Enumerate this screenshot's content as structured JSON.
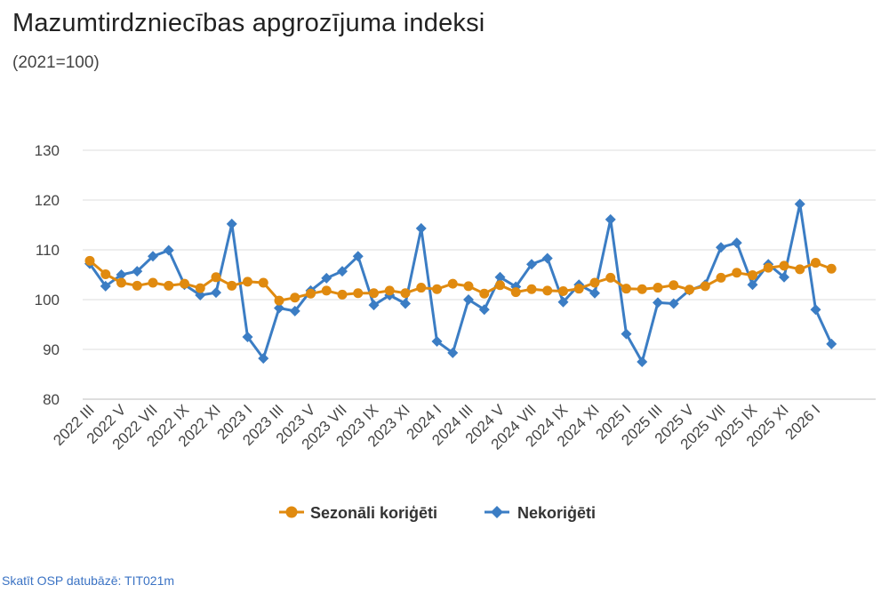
{
  "header": {
    "title": "Mazumtirdzniecības apgrozījuma indeksi",
    "subtitle": "(2021=100)"
  },
  "footer": {
    "source_link": "Skatīt OSP datubāzē: TIT021m"
  },
  "colors": {
    "seasonal": "#e08a0f",
    "unadjusted": "#3b7dc4",
    "gridline": "#dcdcdc",
    "axis_text": "#444444"
  },
  "chart_data": {
    "type": "line",
    "ylim": [
      80,
      130
    ],
    "yticks": [
      80,
      90,
      100,
      110,
      120,
      130
    ],
    "grid": true,
    "legend_position": "bottom",
    "x": [
      "2022 III",
      "2022 IV",
      "2022 V",
      "2022 VI",
      "2022 VII",
      "2022 VIII",
      "2022 IX",
      "2022 X",
      "2022 XI",
      "2022 XII",
      "2023 I",
      "2023 II",
      "2023 III",
      "2023 IV",
      "2023 V",
      "2023 VI",
      "2023 VII",
      "2023 VIII",
      "2023 IX",
      "2023 X",
      "2023 XI",
      "2023 XII",
      "2024 I",
      "2024 II",
      "2024 III",
      "2024 IV",
      "2024 V",
      "2024 VI",
      "2024 VII",
      "2024 VIII",
      "2024 IX",
      "2024 X",
      "2024 XI",
      "2024 XII",
      "2025 I",
      "2025 II",
      "2025 III",
      "2025 IV",
      "2025 V",
      "2025 VI",
      "2025 VII",
      "2025 VIII",
      "2025 IX",
      "2025 X",
      "2025 XI",
      "2025 XII",
      "2026 I",
      "2026 II"
    ],
    "x_tick_labels": [
      "2022 III",
      "2022 V",
      "2022 VII",
      "2022 IX",
      "2022 XI",
      "2023 I",
      "2023 III",
      "2023 V",
      "2023 VII",
      "2023 IX",
      "2023 XI",
      "2024 I",
      "2024 III",
      "2024 V",
      "2024 VII",
      "2024 IX",
      "2024 XI",
      "2025 I",
      "2025 III",
      "2025 V",
      "2025 VII",
      "2025 IX",
      "2025 XI",
      "2026 I"
    ],
    "series": [
      {
        "name": "Sezonāli koriģēti",
        "marker": "circle",
        "values": [
          107.8,
          105.1,
          103.4,
          102.8,
          103.4,
          102.8,
          103.2,
          102.3,
          104.5,
          102.8,
          103.6,
          103.4,
          99.8,
          100.4,
          101.2,
          101.8,
          101.0,
          101.3,
          101.3,
          101.8,
          101.3,
          102.4,
          102.1,
          103.2,
          102.7,
          101.2,
          102.9,
          101.5,
          102.1,
          101.8,
          101.7,
          102.2,
          103.4,
          104.4,
          102.2,
          102.1,
          102.4,
          102.9,
          102.0,
          102.7,
          104.4,
          105.4,
          104.9,
          106.4,
          106.8,
          106.1,
          107.4,
          106.2
        ]
      },
      {
        "name": "Nekoriģēti",
        "marker": "diamond",
        "values": [
          107.2,
          102.7,
          105.0,
          105.7,
          108.7,
          109.9,
          103.0,
          100.9,
          101.4,
          115.2,
          92.5,
          88.2,
          98.3,
          97.7,
          101.8,
          104.3,
          105.7,
          108.7,
          98.9,
          100.9,
          99.2,
          114.3,
          91.6,
          89.3,
          100.0,
          98.0,
          104.5,
          102.6,
          107.1,
          108.3,
          99.5,
          103.0,
          101.3,
          116.1,
          93.1,
          87.5,
          99.4,
          99.2,
          101.9,
          103.0,
          110.5,
          111.4,
          103.0,
          107.1,
          104.5,
          119.2,
          98.0,
          91.1
        ]
      }
    ]
  }
}
